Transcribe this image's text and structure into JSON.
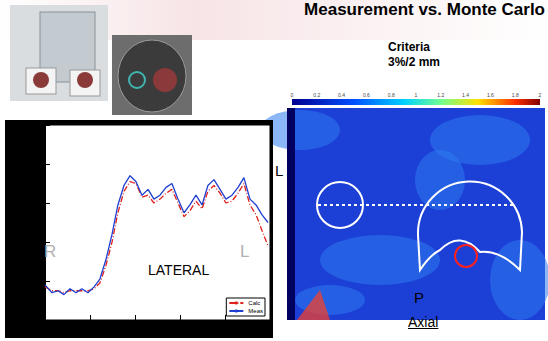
{
  "header": {
    "title": "Measurement vs. Monte Carlo"
  },
  "gamma_map": {
    "criteria": [
      "Criteria",
      "3%/2 mm"
    ],
    "colorbar": {
      "range": [
        0,
        2
      ],
      "ticks": [
        0,
        0.2,
        0.4,
        0.6,
        0.8,
        1,
        1.2,
        1.4,
        1.6,
        1.8,
        2
      ]
    },
    "side_label": "L",
    "bottom_label": "P",
    "view": "Axial"
  },
  "chart_data": {
    "type": "line",
    "title": "LATERAL",
    "annotations": [
      "R",
      "L"
    ],
    "x": [
      0,
      3.1,
      5.8,
      8.4,
      11.1,
      13.8,
      16.4,
      19.1,
      21.8,
      24.4,
      27.1,
      29.8,
      32.4,
      35.1,
      37.8,
      40.4,
      43.1,
      45.8,
      48.4,
      51.1,
      53.8,
      56.4,
      59.1,
      61.8,
      64.4,
      67.1,
      69.8,
      72.4,
      75.1,
      77.8,
      80.4,
      83.1,
      85.8,
      88.4,
      91.1,
      93.8,
      96.4,
      99.1
    ],
    "series": [
      {
        "name": "Calc",
        "color": "#e0201b",
        "line_style": "dashdot",
        "values": [
          0.17,
          0.15,
          0.15,
          0.14,
          0.15,
          0.15,
          0.15,
          0.15,
          0.16,
          0.19,
          0.28,
          0.4,
          0.55,
          0.66,
          0.71,
          0.7,
          0.63,
          0.64,
          0.6,
          0.62,
          0.65,
          0.67,
          0.6,
          0.53,
          0.56,
          0.61,
          0.57,
          0.66,
          0.69,
          0.65,
          0.6,
          0.61,
          0.65,
          0.7,
          0.59,
          0.54,
          0.46,
          0.38
        ]
      },
      {
        "name": "Meas",
        "color": "#1f3fd0",
        "line_style": "solid",
        "values": [
          0.18,
          0.14,
          0.15,
          0.13,
          0.16,
          0.14,
          0.16,
          0.14,
          0.17,
          0.21,
          0.31,
          0.44,
          0.59,
          0.69,
          0.74,
          0.71,
          0.64,
          0.67,
          0.62,
          0.64,
          0.68,
          0.7,
          0.62,
          0.55,
          0.59,
          0.64,
          0.59,
          0.69,
          0.72,
          0.67,
          0.62,
          0.64,
          0.68,
          0.73,
          0.62,
          0.59,
          0.54,
          0.5
        ]
      }
    ],
    "xlim": [
      0,
      100
    ],
    "ylim": [
      0,
      1
    ],
    "xticks": [
      0,
      20,
      40,
      60,
      80,
      100
    ],
    "yticks": [
      0,
      0.2,
      0.4,
      0.6,
      0.8,
      1
    ],
    "tick_labels": false,
    "legend": "bottom-right"
  }
}
